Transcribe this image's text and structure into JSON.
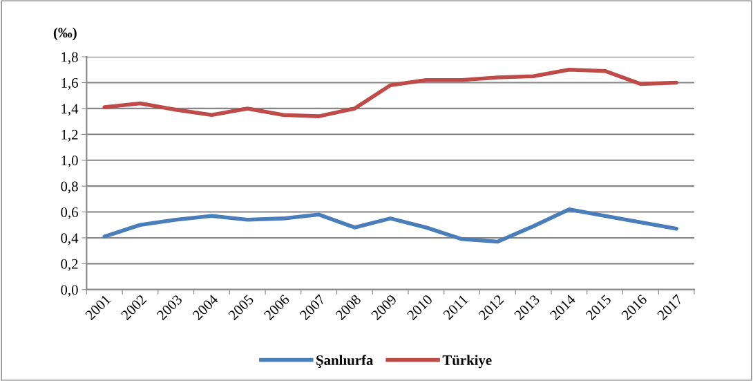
{
  "chart_data": {
    "type": "line",
    "ylabel": "(‰)",
    "categories": [
      "2001",
      "2002",
      "2003",
      "2004",
      "2005",
      "2006",
      "2007",
      "2008",
      "2009",
      "2010",
      "2011",
      "2012",
      "2013",
      "2014",
      "2015",
      "2016",
      "2017"
    ],
    "series": [
      {
        "name": "Şanlıurfa",
        "color": "#4a7ebb",
        "values": [
          0.41,
          0.5,
          0.54,
          0.57,
          0.54,
          0.55,
          0.58,
          0.48,
          0.55,
          0.48,
          0.39,
          0.37,
          0.49,
          0.62,
          0.57,
          0.52,
          0.47
        ]
      },
      {
        "name": "Türkiye",
        "color": "#be4b48",
        "values": [
          1.41,
          1.44,
          1.39,
          1.35,
          1.4,
          1.35,
          1.34,
          1.4,
          1.58,
          1.62,
          1.62,
          1.64,
          1.65,
          1.7,
          1.69,
          1.59,
          1.6
        ]
      }
    ],
    "ylim": [
      0,
      1.8
    ],
    "yticks": [
      {
        "value": 0,
        "label": "0,0"
      },
      {
        "value": 0.2,
        "label": "0,2"
      },
      {
        "value": 0.4,
        "label": "0,4"
      },
      {
        "value": 0.6,
        "label": "0,6"
      },
      {
        "value": 0.8,
        "label": "0,8"
      },
      {
        "value": 1.0,
        "label": "1,0"
      },
      {
        "value": 1.2,
        "label": "1,2"
      },
      {
        "value": 1.4,
        "label": "1,4"
      },
      {
        "value": 1.6,
        "label": "1,6"
      },
      {
        "value": 1.8,
        "label": "1,8"
      }
    ],
    "grid": "y",
    "legend": "bottom",
    "marker": "none",
    "line_style": "solid"
  }
}
